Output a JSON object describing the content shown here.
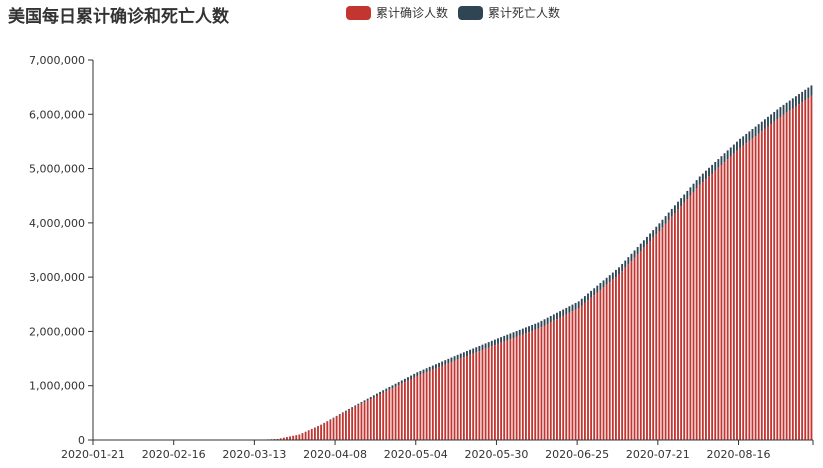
{
  "chart_data": {
    "type": "bar",
    "stacked": true,
    "title": "美国每日累计确诊和死亡人数",
    "xlabel": "",
    "ylabel": "",
    "ylim": [
      0,
      7000000
    ],
    "yticks": [
      0,
      1000000,
      2000000,
      3000000,
      4000000,
      5000000,
      6000000,
      7000000
    ],
    "ytick_labels": [
      "0",
      "1,000,000",
      "2,000,000",
      "3,000,000",
      "4,000,000",
      "5,000,000",
      "6,000,000",
      "7,000,000"
    ],
    "x_start": "2020-01-21",
    "x_end": "2020-09-08",
    "xtick_labels": [
      "2020-01-21",
      "2020-02-16",
      "2020-03-13",
      "2020-04-08",
      "2020-05-04",
      "2020-05-30",
      "2020-06-25",
      "2020-07-21",
      "2020-08-16"
    ],
    "legend_position": "top-center",
    "grid": false,
    "categories_desc": "daily dates from 2020-01-21 to 2020-09-08",
    "series": [
      {
        "name": "累计确诊人数",
        "color": "#c23531",
        "anchors": [
          [
            "2020-01-21",
            1
          ],
          [
            "2020-02-16",
            15
          ],
          [
            "2020-03-01",
            75
          ],
          [
            "2020-03-13",
            2200
          ],
          [
            "2020-03-20",
            19000
          ],
          [
            "2020-03-27",
            100000
          ],
          [
            "2020-04-03",
            275000
          ],
          [
            "2020-04-08",
            430000
          ],
          [
            "2020-04-15",
            640000
          ],
          [
            "2020-04-22",
            840000
          ],
          [
            "2020-05-04",
            1180000
          ],
          [
            "2020-05-17",
            1480000
          ],
          [
            "2020-05-30",
            1770000
          ],
          [
            "2020-06-12",
            2050000
          ],
          [
            "2020-06-25",
            2430000
          ],
          [
            "2020-07-08",
            3050000
          ],
          [
            "2020-07-21",
            3850000
          ],
          [
            "2020-08-03",
            4700000
          ],
          [
            "2020-08-16",
            5380000
          ],
          [
            "2020-08-29",
            5950000
          ],
          [
            "2020-09-08",
            6340000
          ]
        ]
      },
      {
        "name": "累计死亡人数",
        "color": "#2f4554",
        "anchors": [
          [
            "2020-01-21",
            0
          ],
          [
            "2020-02-29",
            1
          ],
          [
            "2020-03-13",
            45
          ],
          [
            "2020-03-20",
            250
          ],
          [
            "2020-03-27",
            1600
          ],
          [
            "2020-04-03",
            7000
          ],
          [
            "2020-04-08",
            14500
          ],
          [
            "2020-04-15",
            28000
          ],
          [
            "2020-04-22",
            46000
          ],
          [
            "2020-05-04",
            68000
          ],
          [
            "2020-05-17",
            89000
          ],
          [
            "2020-05-30",
            103000
          ],
          [
            "2020-06-12",
            114000
          ],
          [
            "2020-06-25",
            124000
          ],
          [
            "2020-07-08",
            131000
          ],
          [
            "2020-07-21",
            141000
          ],
          [
            "2020-08-03",
            154000
          ],
          [
            "2020-08-16",
            169000
          ],
          [
            "2020-08-29",
            183000
          ],
          [
            "2020-09-08",
            192000
          ]
        ]
      }
    ]
  }
}
